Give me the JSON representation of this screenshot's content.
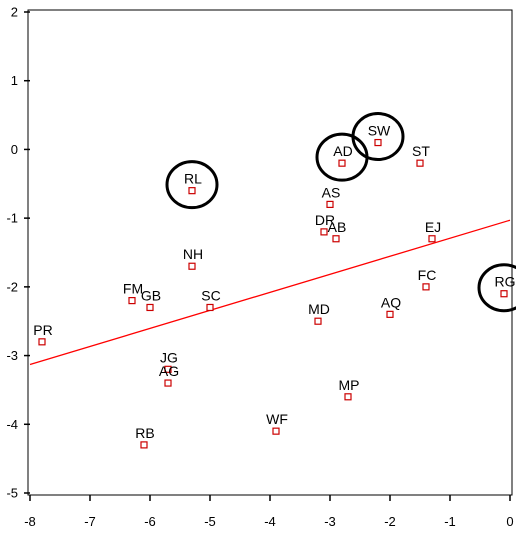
{
  "chart_data": {
    "type": "scatter",
    "title": "",
    "xlabel": "",
    "ylabel": "",
    "xlim": [
      -8,
      0
    ],
    "ylim": [
      -5,
      2
    ],
    "x_ticks": [
      -8,
      -7,
      -6,
      -5,
      -4,
      -3,
      -2,
      -1,
      0
    ],
    "y_ticks": [
      2,
      1,
      0,
      -1,
      -2,
      -3,
      -4,
      -5
    ],
    "x_tick_labels": [
      "-8",
      "-7",
      "-6",
      "-5",
      "-4",
      "-3",
      "-2",
      "-1",
      "0"
    ],
    "y_tick_labels": [
      "2",
      "1",
      "0",
      "-1",
      "-2",
      "-3",
      "-4",
      "-5"
    ],
    "grid": false,
    "point_color": "#cc0000",
    "line_color": "#ff0000",
    "points": [
      {
        "label": "SW",
        "x": -2.2,
        "y": 0.1,
        "circled": true
      },
      {
        "label": "AD",
        "x": -2.8,
        "y": -0.2,
        "circled": true
      },
      {
        "label": "ST",
        "x": -1.5,
        "y": -0.2,
        "circled": false
      },
      {
        "label": "RL",
        "x": -5.3,
        "y": -0.6,
        "circled": true
      },
      {
        "label": "AS",
        "x": -3.0,
        "y": -0.8,
        "circled": false
      },
      {
        "label": "DR",
        "x": -3.1,
        "y": -1.2,
        "circled": false
      },
      {
        "label": "AB",
        "x": -2.9,
        "y": -1.3,
        "circled": false
      },
      {
        "label": "EJ",
        "x": -1.3,
        "y": -1.3,
        "circled": false
      },
      {
        "label": "NH",
        "x": -5.3,
        "y": -1.7,
        "circled": false
      },
      {
        "label": "FC",
        "x": -1.4,
        "y": -2.0,
        "circled": false
      },
      {
        "label": "RG",
        "x": -0.1,
        "y": -2.1,
        "circled": true
      },
      {
        "label": "FM",
        "x": -6.3,
        "y": -2.2,
        "circled": false
      },
      {
        "label": "GB",
        "x": -6.0,
        "y": -2.3,
        "circled": false
      },
      {
        "label": "SC",
        "x": -5.0,
        "y": -2.3,
        "circled": false
      },
      {
        "label": "AQ",
        "x": -2.0,
        "y": -2.4,
        "circled": false
      },
      {
        "label": "MD",
        "x": -3.2,
        "y": -2.5,
        "circled": false
      },
      {
        "label": "PR",
        "x": -7.8,
        "y": -2.8,
        "circled": false
      },
      {
        "label": "JG",
        "x": -5.7,
        "y": -3.2,
        "circled": false
      },
      {
        "label": "AG",
        "x": -5.7,
        "y": -3.4,
        "circled": false
      },
      {
        "label": "MP",
        "x": -2.7,
        "y": -3.6,
        "circled": false
      },
      {
        "label": "WF",
        "x": -3.9,
        "y": -4.1,
        "circled": false
      },
      {
        "label": "RB",
        "x": -6.1,
        "y": -4.3,
        "circled": false
      }
    ],
    "regression_line": {
      "x": [
        -8,
        0
      ],
      "y": [
        -3.13,
        -1.03
      ]
    }
  }
}
